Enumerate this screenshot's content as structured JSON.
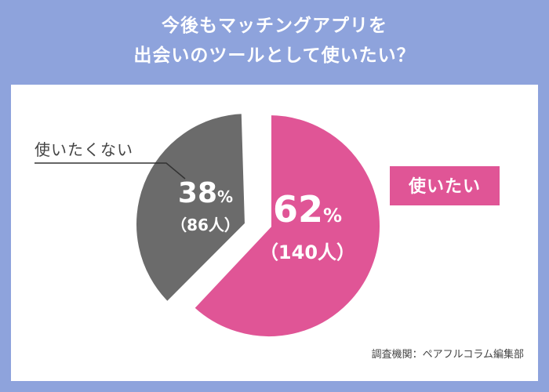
{
  "title_lines": [
    "今後もマッチングアプリを",
    "出会いのツールとして使いたい？"
  ],
  "chart_data": {
    "type": "pie",
    "title": "今後もマッチングアプリを出会いのツールとして使いたい？",
    "slices": [
      {
        "label": "使いたい",
        "percent": 62,
        "count_text": "（140人）",
        "count": 140,
        "color": "#e05596"
      },
      {
        "label": "使いたくない",
        "percent": 38,
        "count_text": "（86人）",
        "count": 86,
        "color": "#6b6b6b"
      }
    ],
    "percent_unit": "%"
  },
  "source": "調査機関：ペアフルコラム編集部",
  "colors": {
    "background": "#8ea3dc",
    "panel": "#ffffff",
    "badge": "#e05596"
  }
}
